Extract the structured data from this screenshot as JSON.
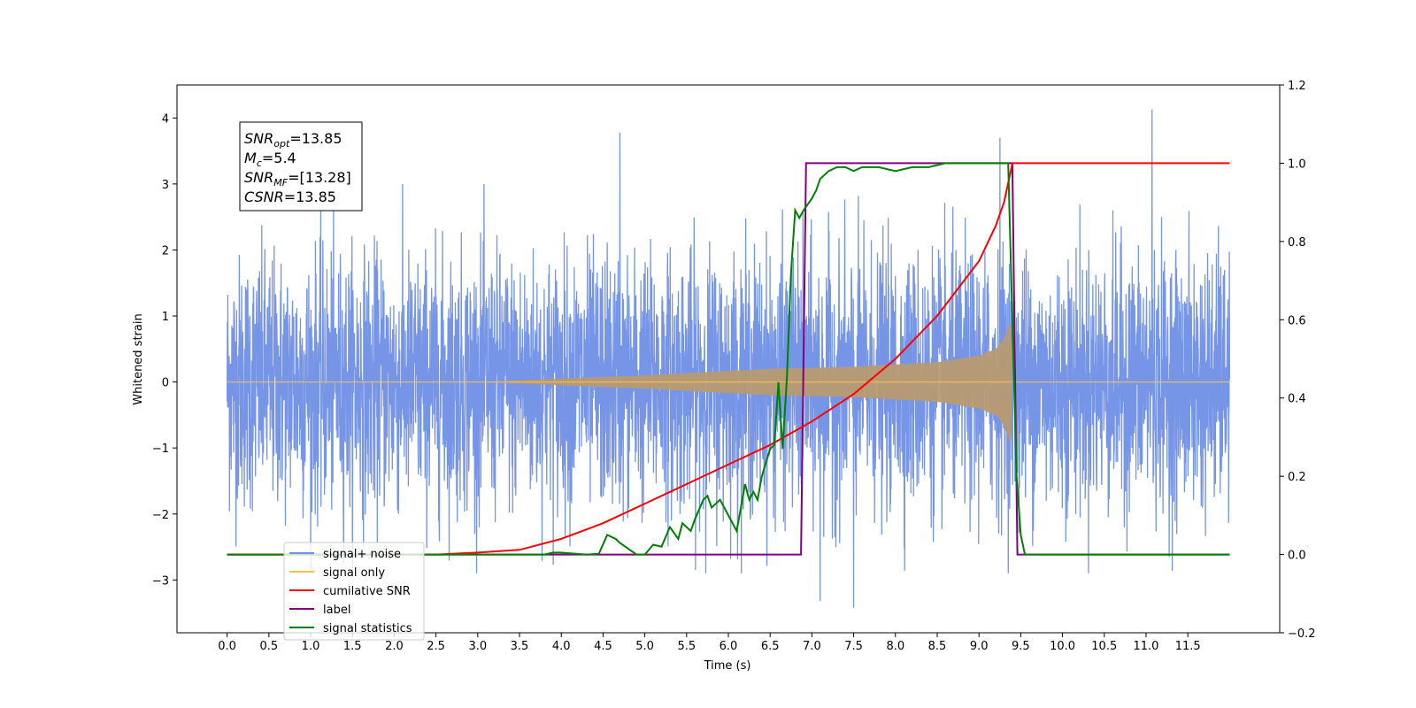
{
  "chart_data": {
    "type": "line",
    "title": "",
    "xlabel": "Time (s)",
    "ylabel_left": "Whitened strain",
    "ylabel_right": "",
    "xlim": [
      -0.6,
      12.6
    ],
    "ylim_left": [
      -3.8,
      4.5
    ],
    "ylim_right": [
      -0.2,
      1.2
    ],
    "x_ticks": [
      "0.0",
      "0.5",
      "1.0",
      "1.5",
      "2.0",
      "2.5",
      "3.0",
      "3.5",
      "4.0",
      "4.5",
      "5.0",
      "5.5",
      "6.0",
      "6.5",
      "7.0",
      "7.5",
      "8.0",
      "8.5",
      "9.0",
      "9.5",
      "10.0",
      "10.5",
      "11.0",
      "11.5"
    ],
    "y_left_ticks": [
      "4",
      "3",
      "2",
      "1",
      "0",
      "−1",
      "−2",
      "−3"
    ],
    "y_right_ticks": [
      "1.2",
      "1.0",
      "0.8",
      "0.6",
      "0.4",
      "0.2",
      "0.0",
      "−0.2"
    ],
    "annotation": {
      "lines": [
        {
          "base": "SNR",
          "sub": "opt",
          "value": "=13.85"
        },
        {
          "base": "M",
          "sub": "c",
          "value": "=5.4"
        },
        {
          "base": "SNR",
          "sub": "MF",
          "value": "=[13.28]"
        },
        {
          "base": "CSNR",
          "sub": "",
          "value": "=13.85"
        }
      ]
    },
    "legend": {
      "position": "lower-left",
      "entries": [
        {
          "label": "signal+ noise",
          "color": "#6f8fe6"
        },
        {
          "label": "signal only",
          "color": "#ffc04d"
        },
        {
          "label": "cumilative SNR",
          "color": "#ff0000"
        },
        {
          "label": "label",
          "color": "#800080"
        },
        {
          "label": "signal statistics",
          "color": "#008000"
        }
      ]
    },
    "series": [
      {
        "name": "signal+ noise",
        "axis": "left",
        "color": "#6f8fe6",
        "x_range": [
          0.0,
          12.0
        ],
        "amplitude_envelope": 2.4,
        "notable_peaks": [
          [
            4.7,
            3.78
          ],
          [
            9.25,
            3.7
          ],
          [
            11.07,
            4.13
          ],
          [
            7.5,
            -3.42
          ],
          [
            7.1,
            -3.32
          ]
        ]
      },
      {
        "name": "signal only",
        "axis": "left",
        "color": "#ffc04d",
        "envelope_x": [
          0.0,
          3.0,
          5.0,
          6.5,
          7.5,
          8.5,
          9.0,
          9.2,
          9.3,
          9.38,
          9.4
        ],
        "envelope_y": [
          0.0,
          0.0,
          0.1,
          0.2,
          0.23,
          0.3,
          0.4,
          0.5,
          0.65,
          0.95,
          0.0
        ]
      },
      {
        "name": "cumilative SNR",
        "axis": "right",
        "color": "#ff0000",
        "x": [
          0.0,
          2.5,
          3.0,
          3.5,
          4.0,
          4.5,
          5.0,
          5.5,
          6.0,
          6.5,
          7.0,
          7.5,
          8.0,
          8.5,
          9.0,
          9.2,
          9.3,
          9.38,
          9.4,
          12.0
        ],
        "y": [
          0.0,
          0.0,
          0.005,
          0.012,
          0.04,
          0.08,
          0.13,
          0.18,
          0.23,
          0.28,
          0.34,
          0.41,
          0.5,
          0.61,
          0.75,
          0.84,
          0.9,
          0.98,
          1.0,
          1.0
        ]
      },
      {
        "name": "label",
        "axis": "right",
        "color": "#800080",
        "x": [
          0.0,
          6.87,
          6.93,
          9.4,
          9.46,
          12.0
        ],
        "y": [
          0.0,
          0.0,
          1.0,
          1.0,
          0.0,
          0.0
        ]
      },
      {
        "name": "signal statistics",
        "axis": "right",
        "color": "#008000",
        "x": [
          0.0,
          3.8,
          3.9,
          4.0,
          4.3,
          4.45,
          4.55,
          4.65,
          4.7,
          4.8,
          4.9,
          5.0,
          5.1,
          5.2,
          5.3,
          5.4,
          5.45,
          5.55,
          5.6,
          5.7,
          5.75,
          5.8,
          5.9,
          6.0,
          6.1,
          6.2,
          6.25,
          6.3,
          6.35,
          6.4,
          6.5,
          6.55,
          6.6,
          6.65,
          6.7,
          6.75,
          6.8,
          6.85,
          6.9,
          7.0,
          7.05,
          7.1,
          7.15,
          7.2,
          7.3,
          7.4,
          7.5,
          7.6,
          7.8,
          8.0,
          8.2,
          8.4,
          8.6,
          8.8,
          9.0,
          9.2,
          9.35,
          9.4,
          9.45,
          9.5,
          9.55,
          9.6,
          9.7,
          12.0
        ],
        "y": [
          0.0,
          0.0,
          0.005,
          0.005,
          0.0,
          0.002,
          0.05,
          0.04,
          0.03,
          0.015,
          0.0,
          0.0,
          0.025,
          0.02,
          0.07,
          0.04,
          0.08,
          0.06,
          0.09,
          0.14,
          0.15,
          0.12,
          0.14,
          0.1,
          0.06,
          0.18,
          0.14,
          0.16,
          0.14,
          0.2,
          0.27,
          0.28,
          0.44,
          0.27,
          0.45,
          0.72,
          0.88,
          0.86,
          0.88,
          0.91,
          0.93,
          0.96,
          0.97,
          0.98,
          0.99,
          0.99,
          0.98,
          0.99,
          0.99,
          0.98,
          0.99,
          0.99,
          1.0,
          1.0,
          1.0,
          1.0,
          1.0,
          0.6,
          0.2,
          0.05,
          0.0,
          0.0,
          0.0,
          0.0
        ]
      }
    ]
  }
}
